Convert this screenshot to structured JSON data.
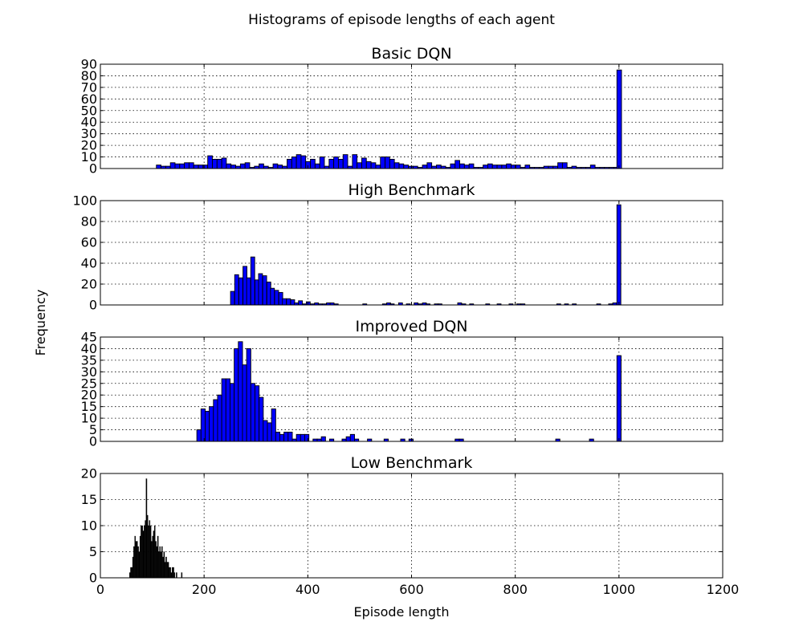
{
  "figure": {
    "suptitle": "Histograms of episode lengths of each agent",
    "xlabel": "Episode length",
    "ylabel": "Frequency"
  },
  "chart_data": [
    {
      "type": "bar",
      "title": "Basic DQN",
      "xlim": [
        0,
        1200
      ],
      "ylim": [
        0,
        90
      ],
      "yticks": [
        0,
        10,
        20,
        30,
        40,
        50,
        60,
        70,
        80,
        90
      ],
      "xticks": [
        0,
        200,
        400,
        600,
        800,
        1000,
        1200
      ],
      "show_xtick_labels": false,
      "grid": true,
      "bar_color": "#0000ff",
      "bin_width": 8.9,
      "bins": [
        [
          108,
          3
        ],
        [
          117,
          2
        ],
        [
          126,
          2
        ],
        [
          135,
          5
        ],
        [
          144,
          4
        ],
        [
          153,
          4
        ],
        [
          162,
          5
        ],
        [
          171,
          5
        ],
        [
          180,
          3
        ],
        [
          189,
          3
        ],
        [
          198,
          3
        ],
        [
          207,
          11
        ],
        [
          216,
          8
        ],
        [
          225,
          8
        ],
        [
          234,
          9
        ],
        [
          243,
          4
        ],
        [
          252,
          3
        ],
        [
          261,
          2
        ],
        [
          270,
          4
        ],
        [
          279,
          5
        ],
        [
          288,
          1
        ],
        [
          297,
          2
        ],
        [
          306,
          4
        ],
        [
          315,
          2
        ],
        [
          324,
          1
        ],
        [
          333,
          4
        ],
        [
          342,
          3
        ],
        [
          351,
          2
        ],
        [
          360,
          8
        ],
        [
          369,
          10
        ],
        [
          378,
          12
        ],
        [
          387,
          11
        ],
        [
          396,
          6
        ],
        [
          405,
          8
        ],
        [
          414,
          4
        ],
        [
          423,
          10
        ],
        [
          432,
          2
        ],
        [
          441,
          8
        ],
        [
          450,
          10
        ],
        [
          459,
          8
        ],
        [
          468,
          12
        ],
        [
          477,
          2
        ],
        [
          486,
          12
        ],
        [
          495,
          5
        ],
        [
          504,
          9
        ],
        [
          513,
          6
        ],
        [
          522,
          5
        ],
        [
          531,
          3
        ],
        [
          540,
          10
        ],
        [
          549,
          10
        ],
        [
          558,
          8
        ],
        [
          567,
          5
        ],
        [
          576,
          4
        ],
        [
          585,
          3
        ],
        [
          594,
          2
        ],
        [
          603,
          2
        ],
        [
          612,
          1
        ],
        [
          621,
          3
        ],
        [
          630,
          5
        ],
        [
          639,
          2
        ],
        [
          648,
          3
        ],
        [
          657,
          2
        ],
        [
          666,
          1
        ],
        [
          675,
          4
        ],
        [
          684,
          7
        ],
        [
          693,
          4
        ],
        [
          702,
          3
        ],
        [
          711,
          4
        ],
        [
          720,
          1
        ],
        [
          729,
          1
        ],
        [
          738,
          3
        ],
        [
          747,
          4
        ],
        [
          756,
          3
        ],
        [
          765,
          3
        ],
        [
          774,
          3
        ],
        [
          783,
          4
        ],
        [
          792,
          3
        ],
        [
          801,
          3
        ],
        [
          810,
          1
        ],
        [
          819,
          3
        ],
        [
          828,
          1
        ],
        [
          837,
          1
        ],
        [
          846,
          1
        ],
        [
          855,
          2
        ],
        [
          864,
          2
        ],
        [
          873,
          2
        ],
        [
          882,
          5
        ],
        [
          891,
          5
        ],
        [
          900,
          1
        ],
        [
          909,
          2
        ],
        [
          918,
          1
        ],
        [
          927,
          1
        ],
        [
          936,
          1
        ],
        [
          945,
          3
        ],
        [
          954,
          1
        ],
        [
          963,
          1
        ],
        [
          972,
          1
        ],
        [
          981,
          1
        ],
        [
          990,
          1
        ],
        [
          996,
          85
        ]
      ]
    },
    {
      "type": "bar",
      "title": "High Benchmark",
      "xlim": [
        0,
        1200
      ],
      "ylim": [
        0,
        100
      ],
      "yticks": [
        0,
        20,
        40,
        60,
        80,
        100
      ],
      "xticks": [
        0,
        200,
        400,
        600,
        800,
        1000,
        1200
      ],
      "show_xtick_labels": false,
      "grid": true,
      "bar_color": "#0000ff",
      "bin_width": 7.6,
      "bins": [
        [
          251,
          13
        ],
        [
          259,
          29
        ],
        [
          267,
          26
        ],
        [
          275,
          37
        ],
        [
          282,
          26
        ],
        [
          290,
          46
        ],
        [
          298,
          24
        ],
        [
          305,
          30
        ],
        [
          313,
          28
        ],
        [
          321,
          22
        ],
        [
          328,
          16
        ],
        [
          336,
          14
        ],
        [
          344,
          12
        ],
        [
          351,
          6
        ],
        [
          359,
          6
        ],
        [
          367,
          5
        ],
        [
          374,
          2
        ],
        [
          382,
          4
        ],
        [
          390,
          1
        ],
        [
          397,
          3
        ],
        [
          405,
          1
        ],
        [
          413,
          2
        ],
        [
          420,
          1
        ],
        [
          428,
          1
        ],
        [
          436,
          2
        ],
        [
          443,
          2
        ],
        [
          451,
          1
        ],
        [
          506,
          1
        ],
        [
          544,
          1
        ],
        [
          552,
          2
        ],
        [
          559,
          1
        ],
        [
          575,
          2
        ],
        [
          590,
          1
        ],
        [
          605,
          2
        ],
        [
          613,
          1
        ],
        [
          621,
          2
        ],
        [
          628,
          1
        ],
        [
          644,
          1
        ],
        [
          651,
          1
        ],
        [
          689,
          2
        ],
        [
          697,
          1
        ],
        [
          712,
          1
        ],
        [
          743,
          1
        ],
        [
          765,
          1
        ],
        [
          788,
          1
        ],
        [
          803,
          1
        ],
        [
          811,
          1
        ],
        [
          880,
          1
        ],
        [
          895,
          1
        ],
        [
          910,
          1
        ],
        [
          957,
          1
        ],
        [
          980,
          1
        ],
        [
          988,
          2
        ],
        [
          996,
          96
        ]
      ]
    },
    {
      "type": "bar",
      "title": "Improved DQN",
      "xlim": [
        0,
        1200
      ],
      "ylim": [
        0,
        45
      ],
      "yticks": [
        0,
        5,
        10,
        15,
        20,
        25,
        30,
        35,
        40,
        45
      ],
      "xticks": [
        0,
        200,
        400,
        600,
        800,
        1000,
        1200
      ],
      "show_xtick_labels": false,
      "grid": true,
      "bar_color": "#0000ff",
      "bin_width": 8.1,
      "bins": [
        [
          186,
          5
        ],
        [
          194,
          14
        ],
        [
          202,
          13
        ],
        [
          210,
          15
        ],
        [
          218,
          18
        ],
        [
          226,
          20
        ],
        [
          234,
          27
        ],
        [
          242,
          27
        ],
        [
          250,
          25
        ],
        [
          258,
          40
        ],
        [
          266,
          43
        ],
        [
          274,
          33
        ],
        [
          282,
          40
        ],
        [
          290,
          25
        ],
        [
          298,
          24
        ],
        [
          306,
          19
        ],
        [
          314,
          9
        ],
        [
          322,
          8
        ],
        [
          330,
          14
        ],
        [
          338,
          4
        ],
        [
          346,
          3
        ],
        [
          354,
          4
        ],
        [
          362,
          4
        ],
        [
          370,
          1
        ],
        [
          378,
          3
        ],
        [
          386,
          3
        ],
        [
          394,
          3
        ],
        [
          410,
          1
        ],
        [
          418,
          1
        ],
        [
          426,
          2
        ],
        [
          442,
          1
        ],
        [
          466,
          1
        ],
        [
          474,
          2
        ],
        [
          482,
          3
        ],
        [
          490,
          1
        ],
        [
          515,
          1
        ],
        [
          547,
          1
        ],
        [
          579,
          1
        ],
        [
          595,
          1
        ],
        [
          684,
          1
        ],
        [
          692,
          1
        ],
        [
          878,
          1
        ],
        [
          943,
          1
        ],
        [
          996,
          37
        ]
      ]
    },
    {
      "type": "bar",
      "title": "Low Benchmark",
      "xlim": [
        0,
        1200
      ],
      "ylim": [
        0,
        20
      ],
      "yticks": [
        0,
        5,
        10,
        15,
        20
      ],
      "xticks": [
        0,
        200,
        400,
        600,
        800,
        1000,
        1200
      ],
      "show_xtick_labels": true,
      "grid": true,
      "bar_color": "#000000",
      "bin_width": 1.3,
      "bins": [
        [
          56,
          1
        ],
        [
          58,
          2
        ],
        [
          60,
          2
        ],
        [
          62,
          4
        ],
        [
          64,
          6
        ],
        [
          66,
          8
        ],
        [
          68,
          7
        ],
        [
          70,
          7
        ],
        [
          72,
          6
        ],
        [
          74,
          5
        ],
        [
          76,
          8
        ],
        [
          78,
          10
        ],
        [
          80,
          10
        ],
        [
          82,
          9
        ],
        [
          84,
          10
        ],
        [
          86,
          11
        ],
        [
          88,
          19
        ],
        [
          90,
          12
        ],
        [
          92,
          10
        ],
        [
          94,
          11
        ],
        [
          96,
          10
        ],
        [
          98,
          7
        ],
        [
          100,
          8
        ],
        [
          102,
          9
        ],
        [
          104,
          10
        ],
        [
          106,
          7
        ],
        [
          108,
          6
        ],
        [
          110,
          8
        ],
        [
          112,
          5
        ],
        [
          114,
          6
        ],
        [
          116,
          5
        ],
        [
          118,
          6
        ],
        [
          120,
          4
        ],
        [
          122,
          5
        ],
        [
          124,
          3
        ],
        [
          126,
          4
        ],
        [
          128,
          3
        ],
        [
          130,
          3
        ],
        [
          132,
          2
        ],
        [
          134,
          2
        ],
        [
          136,
          1
        ],
        [
          138,
          2
        ],
        [
          140,
          2
        ],
        [
          142,
          1
        ],
        [
          146,
          1
        ],
        [
          156,
          1
        ]
      ]
    }
  ]
}
